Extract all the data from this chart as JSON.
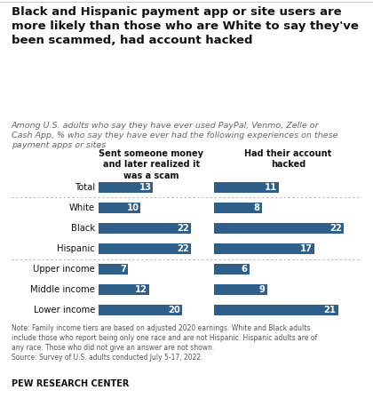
{
  "title": "Black and Hispanic payment app or site users are\nmore likely than those who are White to say they've\nbeen scammed, had account hacked",
  "subtitle": "Among U.S. adults who say they have ever used PayPal, Venmo, Zelle or\nCash App, % who say they have ever had the following experiences on these\npayment apps or sites",
  "col1_header": "Sent someone money\nand later realized it\nwas a scam",
  "col2_header": "Had their account\nhacked",
  "categories": [
    "Total",
    "White",
    "Black",
    "Hispanic",
    "Upper income",
    "Middle income",
    "Lower income"
  ],
  "col1_values": [
    13,
    10,
    22,
    22,
    7,
    12,
    20
  ],
  "col2_values": [
    11,
    8,
    22,
    17,
    6,
    9,
    21
  ],
  "bar_color": "#2E5F8A",
  "background_color": "#FFFFFF",
  "note_text": "Note: Family income tiers are based on adjusted 2020 earnings. White and Black adults\ninclude those who report being only one race and are not Hispanic. Hispanic adults are of\nany race. Those who did not give an answer are not shown.\nSource: Survey of U.S. adults conducted July 5-17, 2022.",
  "source_label": "PEW RESEARCH CENTER",
  "max_val": 25,
  "bar_height": 0.55,
  "title_fontsize": 9.5,
  "subtitle_fontsize": 6.8,
  "category_fontsize": 7.2,
  "header_fontsize": 7.0,
  "value_fontsize": 7.2,
  "note_fontsize": 5.5,
  "source_fontsize": 7.0
}
